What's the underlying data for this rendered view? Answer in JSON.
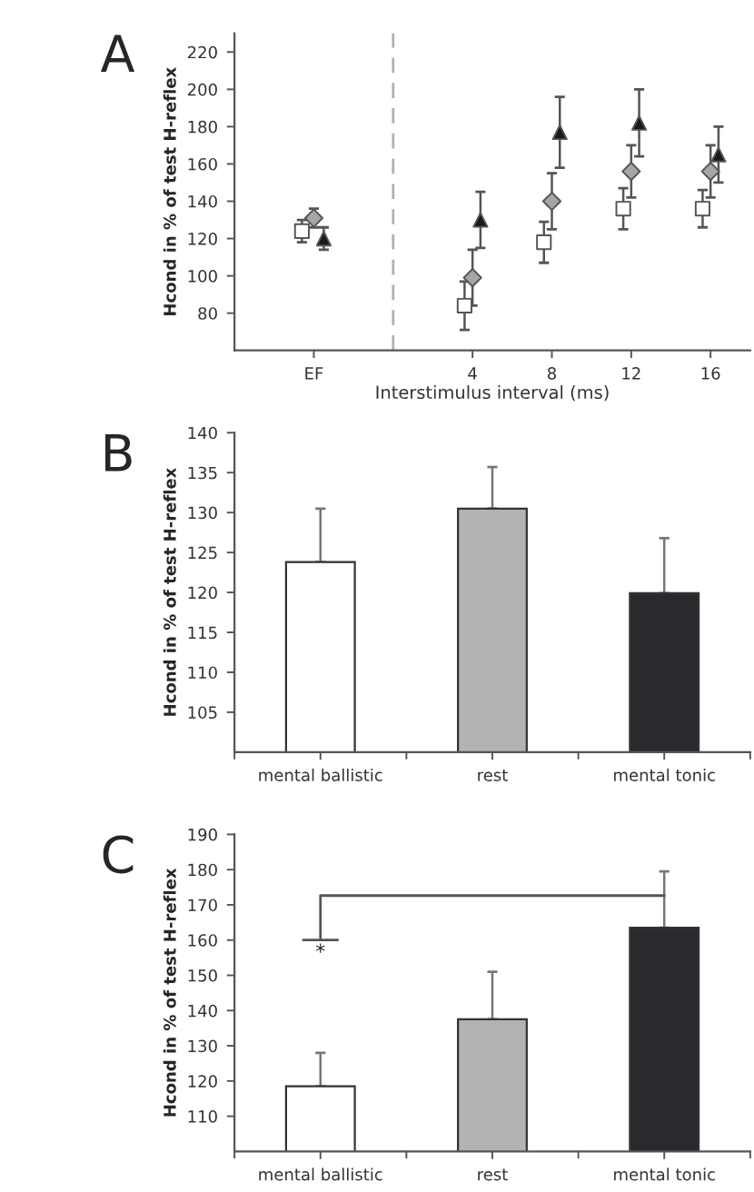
{
  "chart_data": [
    {
      "type": "scatter",
      "title": "A",
      "xlabel": "Interstimulus interval (ms)",
      "ylabel": "Hcond in % of test H-reflex",
      "xlim": [
        -8,
        18
      ],
      "xticks": [
        {
          "value": -4,
          "label": "EF"
        },
        4,
        8,
        12,
        16
      ],
      "ylim": [
        60,
        230
      ],
      "yticks": [
        80,
        100,
        120,
        140,
        160,
        180,
        200,
        220
      ],
      "ref_lines": [
        {
          "axis": "x",
          "value": 0,
          "label": null,
          "color": "#b0b0b0",
          "line_style": "dashed"
        }
      ],
      "grid": false,
      "legend": false,
      "series": [
        {
          "color": "#ffffff",
          "marker": "square",
          "x": [
            -4.6,
            3.6,
            7.6,
            11.6,
            15.6
          ],
          "values": [
            124,
            84,
            118,
            136,
            136
          ],
          "errors": [
            6,
            13,
            11,
            11,
            10
          ]
        },
        {
          "color": "#a6a6a6",
          "marker": "diamond",
          "x": [
            -4,
            4,
            8,
            12,
            16
          ],
          "values": [
            131,
            99,
            140,
            156,
            156
          ],
          "errors": [
            5,
            15,
            15,
            14,
            14
          ]
        },
        {
          "color": "#1a1a1a",
          "marker": "triangle",
          "x": [
            -3.5,
            4.4,
            8.4,
            12.4,
            16.4
          ],
          "values": [
            120,
            130,
            177,
            182,
            165
          ],
          "errors": [
            6,
            15,
            19,
            18,
            15
          ]
        }
      ]
    },
    {
      "type": "bar",
      "title": "B",
      "ylabel": "Hcond in % of test H-reflex",
      "categories": [
        "mental ballistic",
        "rest",
        "mental tonic"
      ],
      "values": [
        123.8,
        130.5,
        119.9
      ],
      "colors": [
        "#ffffff",
        "#b3b3b3",
        "#2a2a2e"
      ],
      "errors": [
        [
          123.8,
          130.5
        ],
        [
          130.5,
          135.7
        ],
        [
          119.9,
          126.8
        ]
      ],
      "ylim": [
        100,
        140
      ],
      "yticks": [
        105,
        110,
        115,
        120,
        125,
        130,
        135,
        140
      ],
      "grid": false,
      "legend": false
    },
    {
      "type": "bar",
      "title": "C",
      "ylabel": "Hcond in % of test H-reflex",
      "categories": [
        "mental ballistic",
        "rest",
        "mental tonic"
      ],
      "values": [
        118.5,
        137.5,
        163.5
      ],
      "colors": [
        "#ffffff",
        "#b3b3b3",
        "#2a2a2e"
      ],
      "errors": [
        [
          118.5,
          128
        ],
        [
          137.5,
          151
        ],
        [
          163.5,
          179.5
        ]
      ],
      "ylim": [
        100,
        190
      ],
      "yticks": [
        110,
        120,
        130,
        140,
        150,
        160,
        170,
        180,
        190
      ],
      "grid": false,
      "legend": false,
      "annotations": [
        "*"
      ]
    }
  ]
}
